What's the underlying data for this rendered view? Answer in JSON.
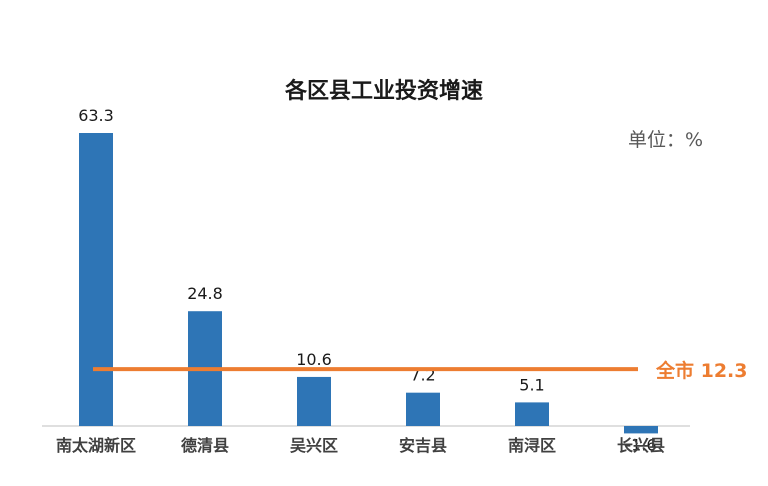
{
  "chart_data": {
    "type": "bar",
    "title": "各区县工业投资增速",
    "unit_label": "单位：%",
    "categories": [
      "南太湖新区",
      "德清县",
      "吴兴区",
      "安吉县",
      "南浔区",
      "长兴县"
    ],
    "values": [
      63.3,
      24.8,
      10.6,
      7.2,
      5.1,
      -1.6
    ],
    "value_labels": [
      "63.3",
      "24.8",
      "10.6",
      "7.2",
      "5.1",
      "-1.6"
    ],
    "reference_line": {
      "label": "全市 12.3",
      "value": 12.3
    },
    "colors": {
      "bar": "#2e75b6",
      "reference": "#ed7d31",
      "axis": "#bfbfbf"
    },
    "grid": false,
    "legend": "none"
  }
}
